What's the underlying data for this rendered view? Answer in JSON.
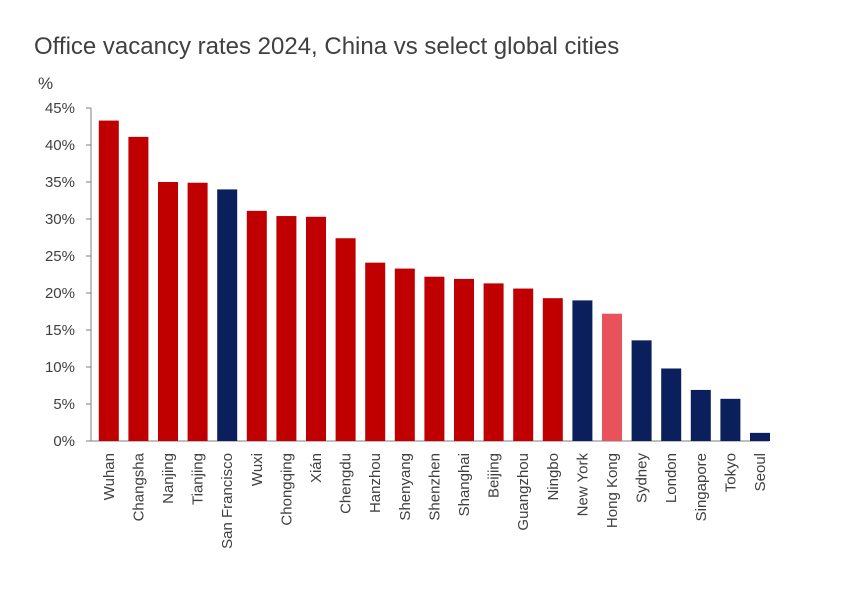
{
  "chart_data": {
    "type": "bar",
    "title": "Office vacancy rates 2024, China vs select global cities",
    "ylabel": "%",
    "xlabel": "",
    "ylim": [
      0,
      45
    ],
    "yticks": [
      0,
      5,
      10,
      15,
      20,
      25,
      30,
      35,
      40,
      45
    ],
    "ytick_labels": [
      "0%",
      "5%",
      "10%",
      "15%",
      "20%",
      "25%",
      "30%",
      "35%",
      "40%",
      "45%"
    ],
    "grid": false,
    "legend": "none",
    "categories": [
      "Wuhan",
      "Changsha",
      "Nanjing",
      "Tianjing",
      "San Francisco",
      "Wuxi",
      "Chongqing",
      "Xián",
      "Chengdu",
      "Hanzhou",
      "Shenyang",
      "Shenzhen",
      "Shanghai",
      "Beijing",
      "Guangzhou",
      "Ningbo",
      "New York",
      "Hong Kong",
      "Sydney",
      "London",
      "Singapore",
      "Tokyo",
      "Seoul"
    ],
    "values": [
      43.3,
      41.1,
      35.0,
      34.9,
      34.0,
      31.1,
      30.4,
      30.3,
      27.4,
      24.1,
      23.3,
      22.2,
      21.9,
      21.3,
      20.6,
      19.3,
      19.0,
      17.2,
      13.6,
      9.8,
      6.9,
      5.7,
      1.1
    ],
    "bar_groups": [
      "china",
      "china",
      "china",
      "china",
      "global",
      "china",
      "china",
      "china",
      "china",
      "china",
      "china",
      "china",
      "china",
      "china",
      "china",
      "china",
      "global",
      "hongkong",
      "global",
      "global",
      "global",
      "global",
      "global"
    ],
    "colors": {
      "china": "#C00000",
      "global": "#0A1F5C",
      "hongkong": "#E8525A",
      "axis": "#7F7F7F",
      "text": "#404040"
    }
  }
}
